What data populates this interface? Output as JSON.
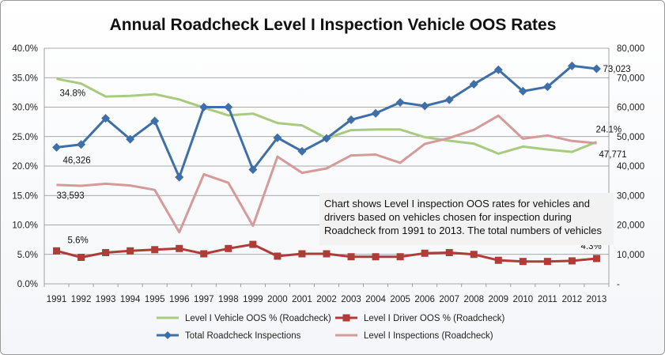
{
  "chart_data": {
    "type": "line",
    "title": "Annual Roadcheck Level I Inspection Vehicle OOS Rates",
    "categories": [
      "1991",
      "1992",
      "1993",
      "1994",
      "1995",
      "1996",
      "1997",
      "1998",
      "1999",
      "2000",
      "2001",
      "2002",
      "2003",
      "2004",
      "2005",
      "2006",
      "2007",
      "2008",
      "2009",
      "2010",
      "2011",
      "2012",
      "2013"
    ],
    "y_left": {
      "ticks": [
        "0.0%",
        "5.0%",
        "10.0%",
        "15.0%",
        "20.0%",
        "25.0%",
        "30.0%",
        "35.0%",
        "40.0%"
      ],
      "range": [
        0,
        40
      ]
    },
    "y_right": {
      "ticks": [
        "-",
        "10,000",
        "20,000",
        "30,000",
        "40,000",
        "50,000",
        "60,000",
        "70,000",
        "80,000"
      ],
      "range": [
        0,
        80000
      ]
    },
    "grid": "horizontal",
    "legend_placement": "bottom",
    "series": [
      {
        "name": "Level I Vehicle OOS % (Roadcheck)",
        "axis": "left",
        "color": "#a9cb80",
        "marker": "none",
        "values": [
          34.8,
          34.0,
          31.8,
          31.9,
          32.2,
          31.3,
          29.9,
          28.6,
          28.9,
          27.3,
          26.9,
          24.7,
          26.1,
          26.2,
          26.2,
          24.9,
          24.3,
          23.8,
          22.1,
          23.3,
          22.8,
          22.4,
          24.1
        ]
      },
      {
        "name": "Level I Driver OOS % (Roadcheck)",
        "axis": "left",
        "color": "#b03c38",
        "marker": "square",
        "values": [
          5.6,
          4.5,
          5.3,
          5.6,
          5.8,
          6.0,
          5.1,
          6.0,
          6.7,
          4.7,
          5.1,
          5.1,
          4.6,
          4.6,
          4.6,
          5.2,
          5.3,
          5.0,
          4.0,
          3.8,
          3.8,
          3.9,
          4.3
        ]
      },
      {
        "name": "Total Roadcheck Inspections",
        "axis": "right",
        "color": "#3e6fa8",
        "marker": "diamond",
        "values": [
          46326,
          47300,
          56200,
          49100,
          55300,
          36200,
          60000,
          60000,
          38800,
          49600,
          45000,
          49400,
          55700,
          57900,
          61600,
          60400,
          62500,
          67800,
          72700,
          65400,
          66900,
          74000,
          73023
        ]
      },
      {
        "name": "Level I Inspections (Roadcheck)",
        "axis": "right",
        "color": "#d69a98",
        "marker": "none",
        "values": [
          33593,
          33300,
          34000,
          33400,
          31900,
          17500,
          37200,
          34300,
          19700,
          43200,
          37700,
          39200,
          43600,
          43900,
          41100,
          47500,
          49500,
          52300,
          57100,
          49300,
          50400,
          48500,
          47771
        ]
      }
    ],
    "data_labels": [
      {
        "series": 0,
        "index": 0,
        "text": "34.8%"
      },
      {
        "series": 2,
        "index": 0,
        "text": "46,326"
      },
      {
        "series": 3,
        "index": 0,
        "text": "33,593"
      },
      {
        "series": 1,
        "index": 0,
        "text": "5.6%"
      },
      {
        "series": 2,
        "index": 22,
        "text": "73,023"
      },
      {
        "series": 0,
        "index": 22,
        "text": "24.1%"
      },
      {
        "series": 3,
        "index": 22,
        "text": "47,771"
      },
      {
        "series": 1,
        "index": 22,
        "text": "4.3%"
      }
    ],
    "annotation": "Chart shows Level I inspection OOS rates for vehicles and drivers based on vehicles chosen for inspection during Roadcheck from 1991 to 2013.  The total numbers of vehicles"
  }
}
